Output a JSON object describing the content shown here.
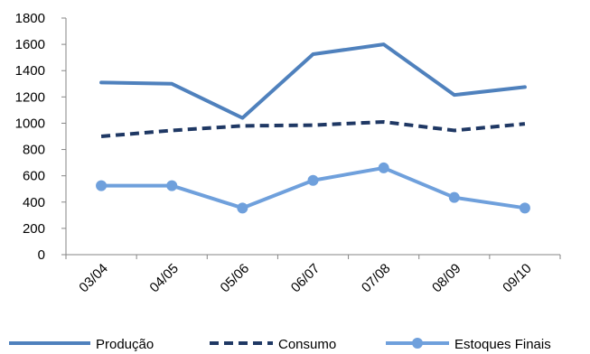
{
  "chart_data": {
    "type": "line",
    "title": "",
    "xlabel": "",
    "ylabel": "",
    "categories": [
      "03/04",
      "04/05",
      "05/06",
      "06/07",
      "07/08",
      "08/09",
      "09/10"
    ],
    "ylim": [
      0,
      1800
    ],
    "yticks": [
      0,
      200,
      400,
      600,
      800,
      1000,
      1200,
      1400,
      1600,
      1800
    ],
    "grid": false,
    "legend_position": "bottom",
    "series": [
      {
        "name": "Produção",
        "values": [
          1310,
          1300,
          1040,
          1525,
          1600,
          1215,
          1275
        ],
        "color": "#4f81bd",
        "style": "solid",
        "marker": "none"
      },
      {
        "name": "Consumo",
        "values": [
          900,
          945,
          980,
          985,
          1010,
          945,
          995
        ],
        "color": "#1f3864",
        "style": "dashed",
        "marker": "none"
      },
      {
        "name": "Estoques Finais",
        "values": [
          525,
          525,
          355,
          565,
          660,
          435,
          355
        ],
        "color": "#6fa0dc",
        "style": "solid",
        "marker": "circle"
      }
    ]
  }
}
